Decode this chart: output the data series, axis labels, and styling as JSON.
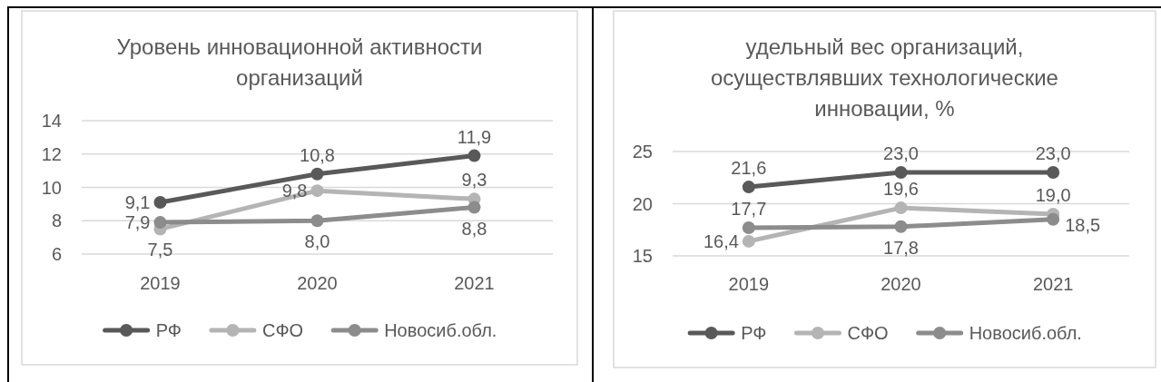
{
  "chart_data": [
    {
      "type": "line",
      "title": "Уровень инновационной активности\nорганизаций",
      "categories": [
        "2019",
        "2020",
        "2021"
      ],
      "series": [
        {
          "name": "РФ",
          "color": "#595959",
          "values": [
            9.1,
            10.8,
            11.9
          ],
          "value_labels": [
            "9,1",
            "10,8",
            "11,9"
          ]
        },
        {
          "name": "СФО",
          "color": "#b4b4b4",
          "values": [
            7.5,
            9.8,
            9.3
          ],
          "value_labels": [
            "7,5",
            "9,8",
            "9,3"
          ]
        },
        {
          "name": "Новосиб.обл.",
          "color": "#8c8c8c",
          "values": [
            7.9,
            8.0,
            8.8
          ],
          "value_labels": [
            "7,9",
            "8,0",
            "8,8"
          ]
        }
      ],
      "ylim": [
        6,
        14
      ],
      "yticks": [
        6,
        8,
        10,
        12,
        14
      ],
      "grid": "y",
      "legend": "bottom",
      "marker": "circle",
      "line_style": "solid"
    },
    {
      "type": "line",
      "title": "удельный вес организаций,\nосуществлявших технологические\nинновации, %",
      "categories": [
        "2019",
        "2020",
        "2021"
      ],
      "series": [
        {
          "name": "РФ",
          "color": "#595959",
          "values": [
            21.6,
            23.0,
            23.0
          ],
          "value_labels": [
            "21,6",
            "23,0",
            "23,0"
          ]
        },
        {
          "name": "СФО",
          "color": "#b4b4b4",
          "values": [
            16.4,
            19.6,
            19.0
          ],
          "value_labels": [
            "16,4",
            "19,6",
            "19,0"
          ]
        },
        {
          "name": "Новосиб.обл.",
          "color": "#8c8c8c",
          "values": [
            17.7,
            17.8,
            18.5
          ],
          "value_labels": [
            "17,7",
            "17,8",
            "18,5"
          ]
        }
      ],
      "ylim": [
        15,
        25
      ],
      "yticks": [
        15,
        20,
        25
      ],
      "grid": "y",
      "legend": "bottom",
      "marker": "circle",
      "line_style": "solid"
    }
  ]
}
